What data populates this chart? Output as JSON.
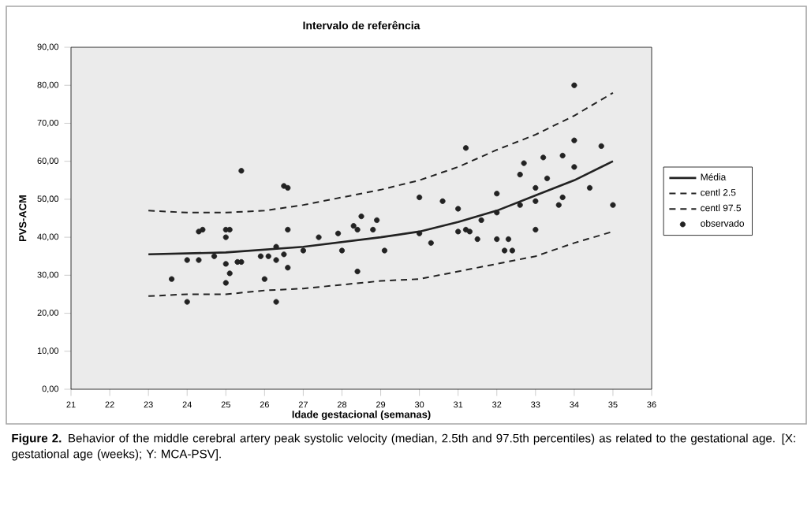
{
  "chart_data": {
    "type": "line",
    "title": "Intervalo de referência",
    "xlabel": "Idade gestacional (semanas)",
    "ylabel": "PVS-ACM",
    "xlim": [
      21,
      36
    ],
    "xticks": [
      21,
      22,
      23,
      24,
      25,
      26,
      27,
      28,
      29,
      30,
      31,
      32,
      33,
      34,
      35,
      36
    ],
    "ylim": [
      0,
      90
    ],
    "yticks": [
      {
        "value": 0,
        "label": "0,00"
      },
      {
        "value": 10,
        "label": "10,00"
      },
      {
        "value": 20,
        "label": "20,00"
      },
      {
        "value": 30,
        "label": "30,00"
      },
      {
        "value": 40,
        "label": "40,00"
      },
      {
        "value": 50,
        "label": "50,00"
      },
      {
        "value": 60,
        "label": "60,00"
      },
      {
        "value": 70,
        "label": "70,00"
      },
      {
        "value": 80,
        "label": "80,00"
      },
      {
        "value": 90,
        "label": "90,00"
      }
    ],
    "grid": false,
    "legend": "right",
    "series": [
      {
        "name": "Média",
        "type": "line",
        "line_style": "solid",
        "marker": "none",
        "color": "#222222",
        "x": [
          23,
          25,
          27,
          29,
          30,
          31,
          32,
          33,
          34,
          35
        ],
        "values": [
          35.5,
          36,
          37.5,
          40,
          41.5,
          44,
          47,
          51,
          55,
          60
        ]
      },
      {
        "name": "centl 2.5",
        "type": "line",
        "line_style": "dashed",
        "marker": "none",
        "color": "#222222",
        "x": [
          23,
          24,
          25,
          26,
          27,
          28,
          29,
          30,
          31,
          32,
          33,
          34,
          35
        ],
        "values": [
          24.5,
          25,
          25,
          26,
          26.5,
          27.5,
          28.5,
          29,
          31,
          33,
          35,
          38.5,
          41.5
        ]
      },
      {
        "name": "centl 97.5",
        "type": "line",
        "line_style": "dashed",
        "marker": "none",
        "color": "#222222",
        "x": [
          23,
          24,
          25,
          26,
          27,
          28,
          29,
          30,
          31,
          32,
          33,
          34,
          35
        ],
        "values": [
          47,
          46.5,
          46.5,
          47,
          48.5,
          50.5,
          52.5,
          55,
          58.5,
          63,
          67,
          72,
          78
        ]
      },
      {
        "name": "observado",
        "type": "scatter",
        "marker": "circle",
        "color": "#222222",
        "x": [
          23.6,
          24.0,
          24.0,
          24.3,
          24.4,
          24.3,
          24.7,
          25.0,
          25.0,
          25.0,
          25.0,
          25.1,
          25.1,
          25.3,
          25.4,
          25.4,
          26.0,
          25.9,
          26.1,
          26.3,
          26.3,
          26.3,
          26.5,
          26.5,
          26.6,
          26.6,
          26.6,
          27.0,
          27.4,
          27.9,
          28.0,
          28.3,
          28.4,
          28.4,
          28.5,
          28.8,
          28.9,
          29.1,
          30.0,
          30.0,
          30.3,
          30.6,
          31.0,
          31.0,
          31.2,
          31.2,
          31.3,
          31.5,
          31.6,
          32.0,
          32.0,
          32.0,
          32.2,
          32.3,
          32.4,
          32.6,
          32.6,
          32.7,
          33.0,
          33.0,
          33.0,
          33.2,
          33.3,
          33.6,
          33.7,
          33.7,
          34.0,
          34.0,
          34.0,
          34.4,
          34.7,
          35.0
        ],
        "values": [
          29,
          23,
          34,
          34,
          42,
          41.5,
          35,
          42,
          40,
          33,
          28,
          30.5,
          42,
          33.5,
          57.5,
          33.5,
          29,
          35,
          35,
          37.5,
          23,
          34,
          35.5,
          53.5,
          53,
          42,
          32,
          36.5,
          40,
          41,
          36.5,
          43,
          42,
          31,
          45.5,
          42,
          44.5,
          36.5,
          50.5,
          41,
          38.5,
          49.5,
          47.5,
          41.5,
          63.5,
          42,
          41.5,
          39.5,
          44.5,
          51.5,
          46.5,
          39.5,
          36.5,
          39.5,
          36.5,
          56.5,
          48.5,
          59.5,
          53,
          49.5,
          42,
          61,
          55.5,
          48.5,
          61.5,
          50.5,
          80,
          65.5,
          58.5,
          53,
          64,
          48.5
        ]
      }
    ],
    "annotations": [
      "**Figure 2.** Behavior of the middle cerebral artery peak systolic velocity (median, 2.5th and 97.5th percentiles) as related to the gestational age. [X: gestational age (weeks); Y: MCA-PSV]."
    ]
  }
}
